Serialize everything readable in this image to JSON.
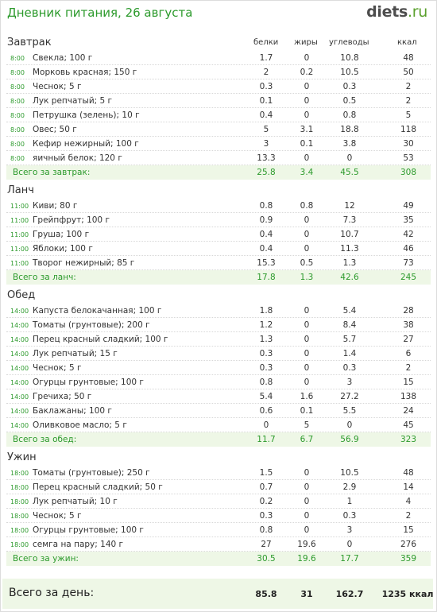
{
  "header": {
    "title": "Дневник питания, 26 августа",
    "logo_name": "diets",
    "logo_tld": ".ru"
  },
  "columns": {
    "protein": "белки",
    "fat": "жиры",
    "carbs": "углеводы",
    "kcal": "ккал"
  },
  "sections": [
    {
      "name": "Завтрак",
      "rows": [
        {
          "time": "8:00",
          "name": "Свекла; 100 г",
          "p": "1.7",
          "f": "0",
          "c": "10.8",
          "k": "48"
        },
        {
          "time": "8:00",
          "name": "Морковь красная; 150 г",
          "p": "2",
          "f": "0.2",
          "c": "10.5",
          "k": "50"
        },
        {
          "time": "8:00",
          "name": "Чеснок; 5 г",
          "p": "0.3",
          "f": "0",
          "c": "0.3",
          "k": "2"
        },
        {
          "time": "8:00",
          "name": "Лук репчатый; 5 г",
          "p": "0.1",
          "f": "0",
          "c": "0.5",
          "k": "2"
        },
        {
          "time": "8:00",
          "name": "Петрушка (зелень); 10 г",
          "p": "0.4",
          "f": "0",
          "c": "0.8",
          "k": "5"
        },
        {
          "time": "8:00",
          "name": "Овес; 50 г",
          "p": "5",
          "f": "3.1",
          "c": "18.8",
          "k": "118"
        },
        {
          "time": "8:00",
          "name": "Кефир нежирный; 100 г",
          "p": "3",
          "f": "0.1",
          "c": "3.8",
          "k": "30"
        },
        {
          "time": "8:00",
          "name": "яичный белок; 120 г",
          "p": "13.3",
          "f": "0",
          "c": "0",
          "k": "53"
        }
      ],
      "total": {
        "label": "Всего за завтрак:",
        "p": "25.8",
        "f": "3.4",
        "c": "45.5",
        "k": "308"
      }
    },
    {
      "name": "Ланч",
      "rows": [
        {
          "time": "11:00",
          "name": "Киви; 80 г",
          "p": "0.8",
          "f": "0.8",
          "c": "12",
          "k": "49"
        },
        {
          "time": "11:00",
          "name": "Грейпфрут; 100 г",
          "p": "0.9",
          "f": "0",
          "c": "7.3",
          "k": "35"
        },
        {
          "time": "11:00",
          "name": "Груша; 100 г",
          "p": "0.4",
          "f": "0",
          "c": "10.7",
          "k": "42"
        },
        {
          "time": "11:00",
          "name": "Яблоки; 100 г",
          "p": "0.4",
          "f": "0",
          "c": "11.3",
          "k": "46"
        },
        {
          "time": "11:00",
          "name": "Творог нежирный; 85 г",
          "p": "15.3",
          "f": "0.5",
          "c": "1.3",
          "k": "73"
        }
      ],
      "total": {
        "label": "Всего за ланч:",
        "p": "17.8",
        "f": "1.3",
        "c": "42.6",
        "k": "245"
      }
    },
    {
      "name": "Обед",
      "rows": [
        {
          "time": "14:00",
          "name": "Капуста белокачанная; 100 г",
          "p": "1.8",
          "f": "0",
          "c": "5.4",
          "k": "28"
        },
        {
          "time": "14:00",
          "name": "Томаты (грунтовые); 200 г",
          "p": "1.2",
          "f": "0",
          "c": "8.4",
          "k": "38"
        },
        {
          "time": "14:00",
          "name": "Перец красный сладкий; 100 г",
          "p": "1.3",
          "f": "0",
          "c": "5.7",
          "k": "27"
        },
        {
          "time": "14:00",
          "name": "Лук репчатый; 15 г",
          "p": "0.3",
          "f": "0",
          "c": "1.4",
          "k": "6"
        },
        {
          "time": "14:00",
          "name": "Чеснок; 5 г",
          "p": "0.3",
          "f": "0",
          "c": "0.3",
          "k": "2"
        },
        {
          "time": "14:00",
          "name": "Огурцы грунтовые; 100 г",
          "p": "0.8",
          "f": "0",
          "c": "3",
          "k": "15"
        },
        {
          "time": "14:00",
          "name": "Гречиха; 50 г",
          "p": "5.4",
          "f": "1.6",
          "c": "27.2",
          "k": "138"
        },
        {
          "time": "14:00",
          "name": "Баклажаны; 100 г",
          "p": "0.6",
          "f": "0.1",
          "c": "5.5",
          "k": "24"
        },
        {
          "time": "14:00",
          "name": "Оливковое масло; 5 г",
          "p": "0",
          "f": "5",
          "c": "0",
          "k": "45"
        }
      ],
      "total": {
        "label": "Всего за обед:",
        "p": "11.7",
        "f": "6.7",
        "c": "56.9",
        "k": "323"
      }
    },
    {
      "name": "Ужин",
      "rows": [
        {
          "time": "18:00",
          "name": "Томаты (грунтовые); 250 г",
          "p": "1.5",
          "f": "0",
          "c": "10.5",
          "k": "48"
        },
        {
          "time": "18:00",
          "name": "Перец красный сладкий; 50 г",
          "p": "0.7",
          "f": "0",
          "c": "2.9",
          "k": "14"
        },
        {
          "time": "18:00",
          "name": "Лук репчатый; 10 г",
          "p": "0.2",
          "f": "0",
          "c": "1",
          "k": "4"
        },
        {
          "time": "18:00",
          "name": "Чеснок; 5 г",
          "p": "0.3",
          "f": "0",
          "c": "0.3",
          "k": "2"
        },
        {
          "time": "18:00",
          "name": "Огурцы грунтовые; 100 г",
          "p": "0.8",
          "f": "0",
          "c": "3",
          "k": "15"
        },
        {
          "time": "18:00",
          "name": "семга на пару; 140 г",
          "p": "27",
          "f": "19.6",
          "c": "0",
          "k": "276"
        }
      ],
      "total": {
        "label": "Всего за ужин:",
        "p": "30.5",
        "f": "19.6",
        "c": "17.7",
        "k": "359"
      }
    }
  ],
  "day_total": {
    "label": "Всего за день:",
    "p": "85.8",
    "f": "31",
    "c": "162.7",
    "k": "1235 ккал"
  },
  "colors": {
    "accent_green": "#2c9a2c",
    "total_bg": "#eef7e6"
  }
}
